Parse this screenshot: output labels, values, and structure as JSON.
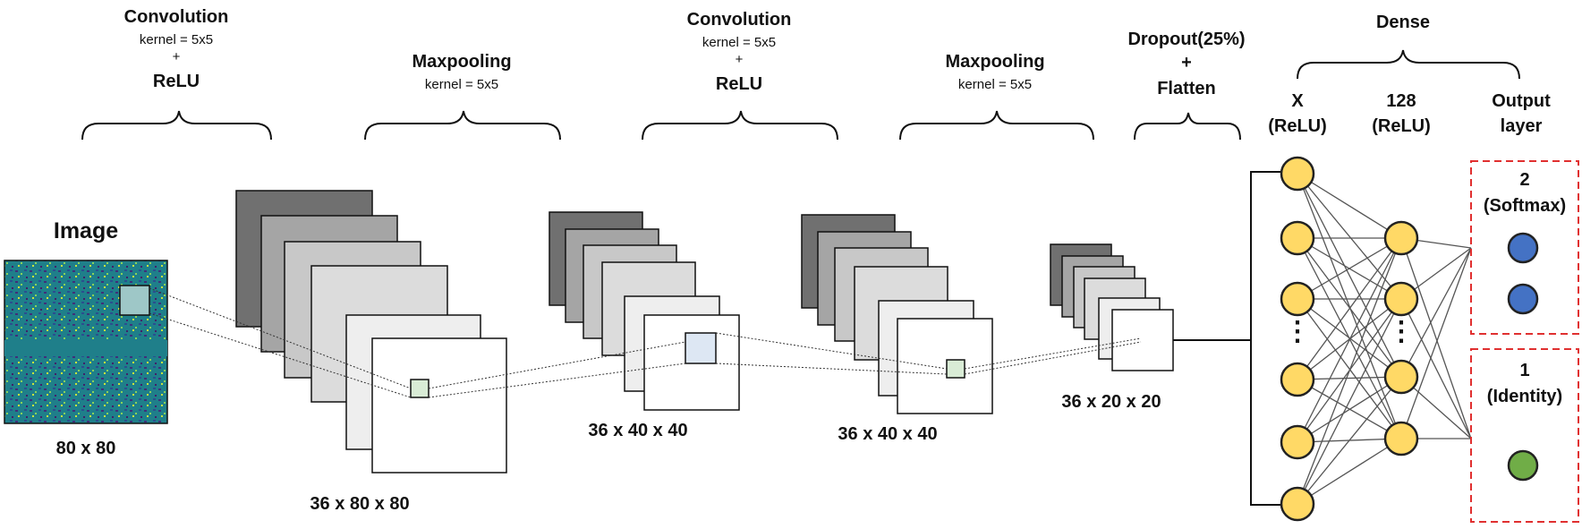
{
  "labels": {
    "conv1": {
      "title": "Convolution",
      "kernel": "kernel = 5x5",
      "plus": "+",
      "act": "ReLU"
    },
    "pool1": {
      "title": "Maxpooling",
      "kernel": "kernel = 5x5"
    },
    "conv2": {
      "title": "Convolution",
      "kernel": "kernel = 5x5",
      "plus": "+",
      "act": "ReLU"
    },
    "pool2": {
      "title": "Maxpooling",
      "kernel": "kernel = 5x5"
    },
    "dropout": {
      "line1": "Dropout(25%)",
      "plus": "+",
      "line2": "Flatten"
    },
    "dense": {
      "title": "Dense"
    },
    "dense_x": {
      "line1": "X",
      "line2": "(ReLU)"
    },
    "dense_128": {
      "line1": "128",
      "line2": "(ReLU)"
    },
    "output": {
      "line1": "Output",
      "line2": "layer"
    },
    "image": {
      "title": "Image",
      "dim": "80 x 80"
    },
    "dim_conv1": "36 x 80 x 80",
    "dim_pool1": "36 x 40 x 40",
    "dim_conv2": "36 x 40 x 40",
    "dim_pool2": "36 x 20 x 20",
    "softmax": {
      "line1": "2",
      "line2": "(Softmax)"
    },
    "identity": {
      "line1": "1",
      "line2": "(Identity)"
    },
    "ellipsis": "⋮"
  },
  "colors": {
    "neuron_fill": "#ffd966",
    "neuron_stroke": "#222222",
    "softmax_node": "#4472c4",
    "identity_node": "#70ad47",
    "dashed_box": "#e03030",
    "image_bg": "#1f7f8a",
    "kernel_highlight": "#d9ecd6"
  }
}
